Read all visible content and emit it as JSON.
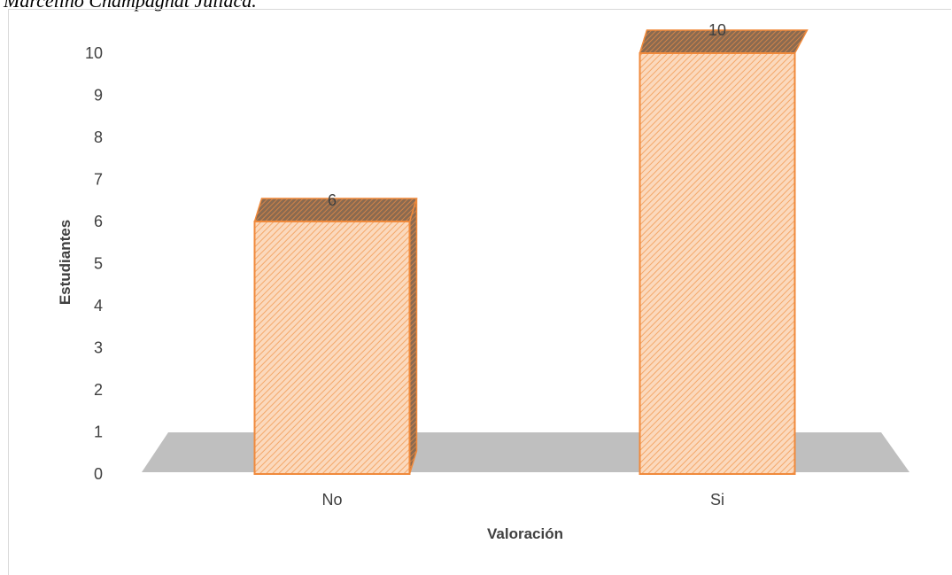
{
  "caption": "Marcelino Champagnat Juliaca.",
  "chart_data": {
    "type": "bar",
    "style": "3d-column",
    "categories": [
      "No",
      "Si"
    ],
    "values": [
      6,
      10
    ],
    "data_labels": [
      "6",
      "10"
    ],
    "xlabel": "Valoración",
    "ylabel": "Estudiantes",
    "ylim": [
      0,
      10
    ],
    "yticks": [
      0,
      1,
      2,
      3,
      4,
      5,
      6,
      7,
      8,
      9,
      10
    ],
    "grid": false,
    "legend": "none",
    "colors": {
      "bar_stroke": "#f08a3c",
      "bar_fill": "#fbd9bd",
      "bar_hatch": "#f4a86a",
      "floor": "#bfbfbf",
      "side": "#6b6b6b"
    }
  }
}
